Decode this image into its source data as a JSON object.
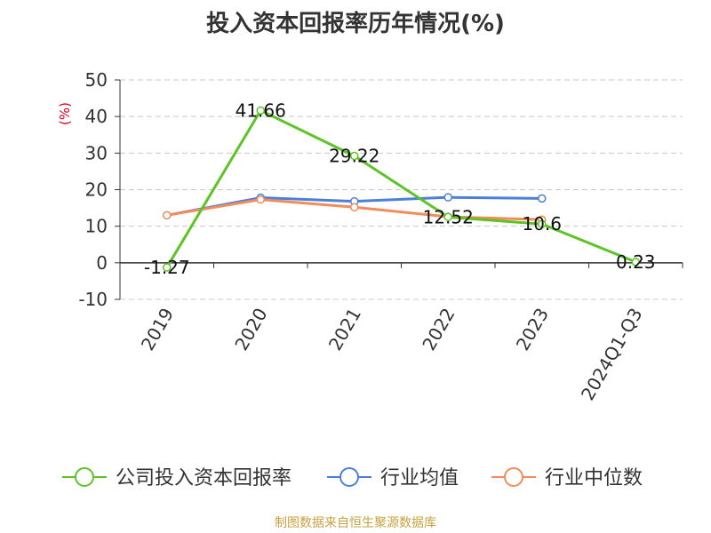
{
  "chart_data": {
    "type": "line",
    "title": "投入资本回报率历年情况(%)",
    "ylabel": "(%)",
    "xlabel": "",
    "categories": [
      "2019",
      "2020",
      "2021",
      "2022",
      "2023",
      "2024Q1-Q3"
    ],
    "ylim": [
      -10,
      50
    ],
    "yticks": [
      50,
      40,
      30,
      20,
      10,
      0,
      -10
    ],
    "grid": true,
    "legend_position": "bottom",
    "series": [
      {
        "name": "公司投入资本回报率",
        "color": "#5cc424",
        "values": [
          -1.27,
          41.66,
          29.22,
          12.52,
          10.6,
          0.23
        ],
        "data_labels": [
          "-1.27",
          "41.66",
          "29.22",
          "12.52",
          "10.6",
          "0.23"
        ]
      },
      {
        "name": "行业均值",
        "color": "#4a7fdc",
        "values": [
          13.0,
          17.8,
          16.8,
          17.9,
          17.6,
          null
        ]
      },
      {
        "name": "行业中位数",
        "color": "#f28c5a",
        "values": [
          13.0,
          17.3,
          15.2,
          12.6,
          11.8,
          null
        ]
      }
    ]
  },
  "source": "制图数据来自恒生聚源数据库"
}
